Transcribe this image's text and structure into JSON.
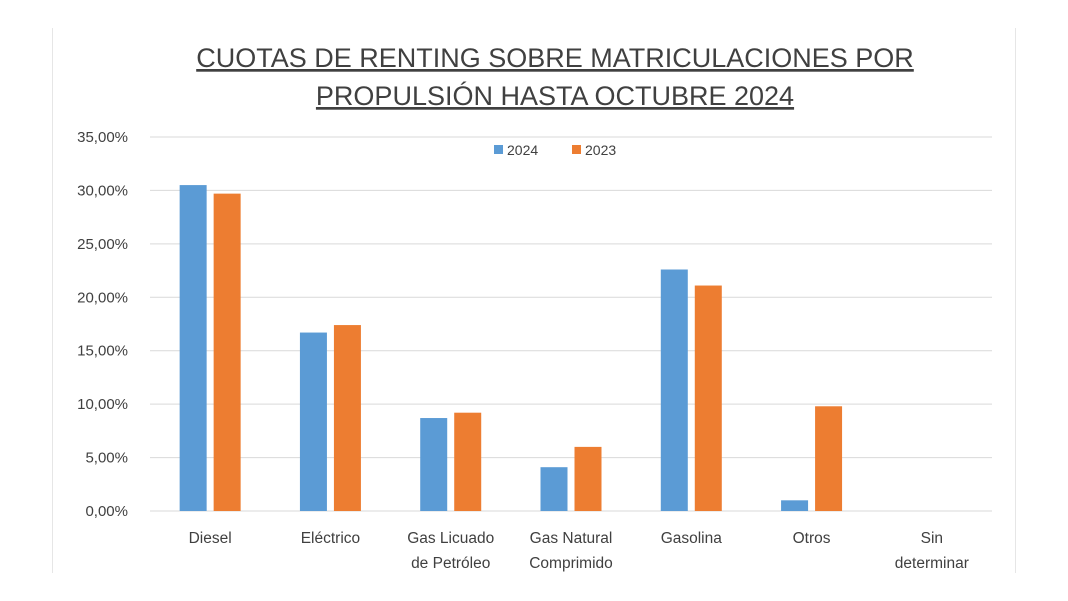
{
  "chart_data": {
    "type": "bar",
    "title_lines": [
      "CUOTAS DE RENTING SOBRE MATRICULACIONES POR",
      "PROPULSIÓN HASTA OCTUBRE 2024"
    ],
    "categories": [
      [
        "Diesel"
      ],
      [
        "Eléctrico"
      ],
      [
        "Gas Licuado",
        "de Petróleo"
      ],
      [
        "Gas Natural",
        "Comprimido"
      ],
      [
        "Gasolina"
      ],
      [
        "Otros"
      ],
      [
        "Sin",
        "determinar"
      ]
    ],
    "series": [
      {
        "name": "2024",
        "color": "#5b9bd5",
        "values": [
          30.5,
          16.7,
          8.7,
          4.1,
          22.6,
          1.0,
          0
        ]
      },
      {
        "name": "2023",
        "color": "#ed7d31",
        "values": [
          29.7,
          17.4,
          9.2,
          6.0,
          21.1,
          9.8,
          0
        ]
      }
    ],
    "ylim": [
      0,
      35
    ],
    "yticks": [
      0,
      5,
      10,
      15,
      20,
      25,
      30,
      35
    ],
    "ytick_labels": [
      "0,00%",
      "5,00%",
      "10,00%",
      "15,00%",
      "20,00%",
      "25,00%",
      "30,00%",
      "35,00%"
    ],
    "value_unit": "%",
    "grid": true,
    "legend_position": "top-center",
    "colors": {
      "text": "#404040",
      "gridline": "#d9d9d9"
    }
  }
}
